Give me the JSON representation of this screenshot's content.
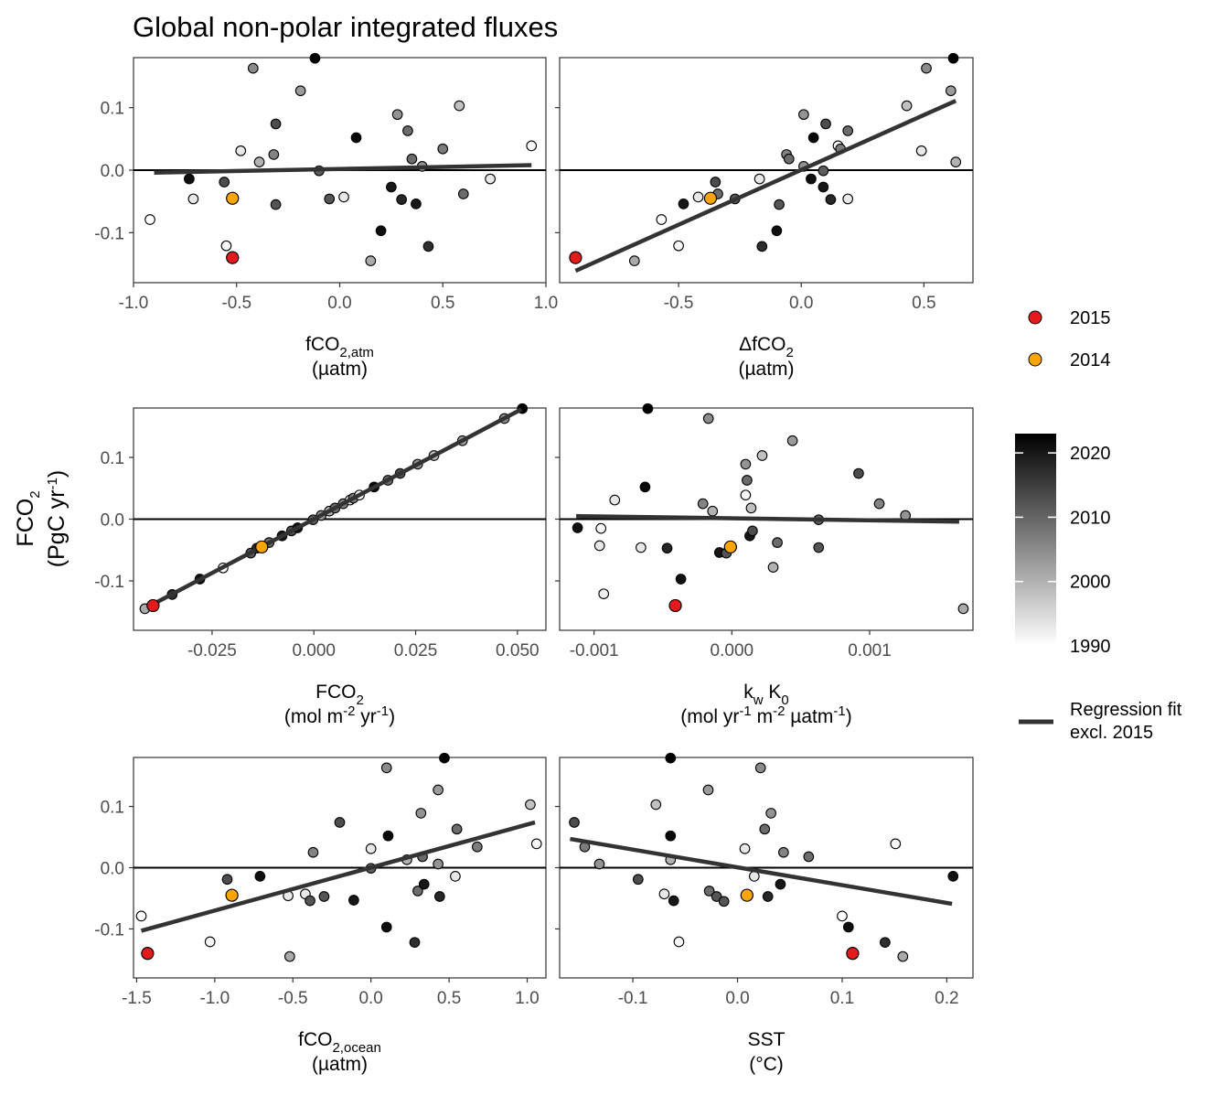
{
  "title": "Global non-polar integrated fluxes",
  "y_axis": {
    "label": "FCO2",
    "unit": "(PgC yr-1)"
  },
  "legend": {
    "highlight": [
      {
        "label": "2015",
        "color": "#e41a1c"
      },
      {
        "label": "2014",
        "color": "#ffa500"
      }
    ],
    "colorbar": {
      "ticks": [
        "2020",
        "2010",
        "2000",
        "1990"
      ],
      "min": 1990,
      "max": 2023
    },
    "regression_label_1": "Regression fit",
    "regression_label_2": "excl. 2015",
    "regression_color": "#333333"
  },
  "chart_data": [
    {
      "type": "scatter",
      "xlabel": "fCO2,atm",
      "xunit": "(µatm)",
      "xlim": [
        -1.0,
        1.0
      ],
      "ylim": [
        -0.18,
        0.18
      ],
      "xticks": [
        "-1.0",
        "-0.5",
        "0.0",
        "0.5",
        "1.0"
      ],
      "yticks": [
        "0.1",
        "0.0",
        "-0.1"
      ],
      "fit": [
        [
          -0.9,
          -0.004
        ],
        [
          0.93,
          0.008
        ]
      ],
      "points": [
        [
          -0.92,
          -0.079,
          1990
        ],
        [
          -0.73,
          -0.014,
          2021
        ],
        [
          -0.71,
          -0.046,
          1993
        ],
        [
          -0.56,
          -0.019,
          2013
        ],
        [
          -0.55,
          -0.121,
          1991
        ],
        [
          -0.52,
          -0.045,
          2014
        ],
        [
          -0.52,
          -0.14,
          2015
        ],
        [
          -0.48,
          0.031,
          1993
        ],
        [
          -0.42,
          0.163,
          2005
        ],
        [
          -0.39,
          0.013,
          2000
        ],
        [
          -0.32,
          0.025,
          2006
        ],
        [
          -0.31,
          -0.055,
          2012
        ],
        [
          -0.31,
          0.074,
          2013
        ],
        [
          -0.19,
          0.127,
          2003
        ],
        [
          -0.12,
          0.179,
          2023
        ],
        [
          -0.1,
          -0.001,
          2011
        ],
        [
          -0.05,
          -0.046,
          2012
        ],
        [
          0.02,
          -0.043,
          1993
        ],
        [
          0.08,
          0.052,
          2022
        ],
        [
          0.15,
          -0.145,
          2001
        ],
        [
          0.2,
          -0.097,
          2021
        ],
        [
          0.25,
          -0.027,
          2020
        ],
        [
          0.28,
          0.089,
          2004
        ],
        [
          0.3,
          -0.047,
          2018
        ],
        [
          0.33,
          0.063,
          2009
        ],
        [
          0.35,
          0.018,
          2009
        ],
        [
          0.37,
          -0.054,
          2020
        ],
        [
          0.4,
          0.006,
          2004
        ],
        [
          0.43,
          -0.122,
          2017
        ],
        [
          0.5,
          0.034,
          2007
        ],
        [
          0.58,
          0.103,
          1998
        ],
        [
          0.6,
          -0.038,
          2009
        ],
        [
          0.73,
          -0.014,
          1993
        ],
        [
          0.93,
          0.039,
          1991
        ]
      ]
    },
    {
      "type": "scatter",
      "xlabel": "ΔfCO2",
      "xunit": "(µatm)",
      "xlim": [
        -0.985,
        0.7
      ],
      "ylim": [
        -0.18,
        0.18
      ],
      "xticks": [
        "-0.5",
        "0.0",
        "0.5"
      ],
      "yticks": [],
      "fit": [
        [
          -0.92,
          -0.161
        ],
        [
          0.63,
          0.111
        ]
      ],
      "points": [
        [
          -0.92,
          -0.14,
          2015
        ],
        [
          -0.68,
          -0.145,
          2001
        ],
        [
          -0.57,
          -0.079,
          1990
        ],
        [
          -0.5,
          -0.121,
          1991
        ],
        [
          -0.48,
          -0.054,
          2020
        ],
        [
          -0.42,
          -0.043,
          1993
        ],
        [
          -0.37,
          -0.045,
          2014
        ],
        [
          -0.35,
          -0.019,
          2013
        ],
        [
          -0.34,
          -0.038,
          2009
        ],
        [
          -0.27,
          -0.046,
          2012
        ],
        [
          -0.17,
          -0.014,
          1993
        ],
        [
          -0.16,
          -0.122,
          2017
        ],
        [
          -0.1,
          -0.097,
          2021
        ],
        [
          -0.09,
          -0.055,
          2012
        ],
        [
          -0.06,
          0.025,
          2006
        ],
        [
          -0.05,
          0.018,
          2009
        ],
        [
          0.01,
          0.006,
          2004
        ],
        [
          0.01,
          0.089,
          2004
        ],
        [
          0.04,
          -0.014,
          2021
        ],
        [
          0.05,
          0.052,
          2022
        ],
        [
          0.09,
          -0.001,
          2011
        ],
        [
          0.09,
          -0.027,
          2020
        ],
        [
          0.1,
          0.074,
          2013
        ],
        [
          0.12,
          -0.047,
          2018
        ],
        [
          0.15,
          0.039,
          1991
        ],
        [
          0.16,
          0.034,
          2007
        ],
        [
          0.19,
          0.063,
          2009
        ],
        [
          0.19,
          -0.046,
          1993
        ],
        [
          0.43,
          0.103,
          1998
        ],
        [
          0.49,
          0.031,
          1993
        ],
        [
          0.51,
          0.163,
          2005
        ],
        [
          0.61,
          0.127,
          2003
        ],
        [
          0.62,
          0.179,
          2023
        ],
        [
          0.63,
          0.013,
          2000
        ]
      ]
    },
    {
      "type": "scatter",
      "xlabel": "FCO2",
      "xunit": "(mol m-2 yr-1)",
      "xlim": [
        -0.0443,
        0.057
      ],
      "ylim": [
        -0.18,
        0.18
      ],
      "xticks": [
        "-0.025",
        "0.000",
        "0.025",
        "0.050"
      ],
      "yticks": [
        "0.1",
        "0.0",
        "-0.1"
      ],
      "fit": [
        [
          -0.041,
          -0.143
        ],
        [
          0.051,
          0.178
        ]
      ],
      "points": [
        [
          -0.0415,
          -0.145,
          2001
        ],
        [
          -0.0395,
          -0.14,
          2015
        ],
        [
          -0.0348,
          -0.122,
          2017
        ],
        [
          -0.028,
          -0.097,
          2021
        ],
        [
          -0.0223,
          -0.079,
          1990
        ],
        [
          -0.0155,
          -0.055,
          2012
        ],
        [
          -0.014,
          -0.047,
          2018
        ],
        [
          -0.0128,
          -0.045,
          2014
        ],
        [
          -0.011,
          -0.038,
          2009
        ],
        [
          -0.0078,
          -0.027,
          2020
        ],
        [
          -0.0055,
          -0.019,
          2013
        ],
        [
          -0.004,
          -0.014,
          2021
        ],
        [
          -0.0002,
          -0.001,
          2011
        ],
        [
          0.0018,
          0.006,
          2004
        ],
        [
          0.0038,
          0.013,
          2000
        ],
        [
          0.0052,
          0.018,
          2009
        ],
        [
          0.0072,
          0.025,
          2006
        ],
        [
          0.0089,
          0.031,
          1993
        ],
        [
          0.0097,
          0.034,
          2007
        ],
        [
          0.0112,
          0.039,
          1991
        ],
        [
          0.0148,
          0.052,
          2022
        ],
        [
          0.0182,
          0.063,
          2009
        ],
        [
          0.0212,
          0.074,
          2013
        ],
        [
          0.0255,
          0.089,
          2004
        ],
        [
          0.0295,
          0.103,
          1998
        ],
        [
          0.0365,
          0.127,
          2003
        ],
        [
          0.0468,
          0.163,
          2005
        ],
        [
          0.0512,
          0.179,
          2023
        ]
      ]
    },
    {
      "type": "scatter",
      "xlabel": "kw K0",
      "xunit": "(mol yr-1 m-2 µatm-1)",
      "xlim": [
        -0.00125,
        0.00175
      ],
      "ylim": [
        -0.18,
        0.18
      ],
      "xticks": [
        "-0.001",
        "0.000",
        "0.001"
      ],
      "yticks": [],
      "fit": [
        [
          -0.00113,
          0.005
        ],
        [
          0.00165,
          -0.004
        ]
      ],
      "points": [
        [
          -0.00112,
          -0.014,
          2021
        ],
        [
          -0.00095,
          -0.015,
          1991
        ],
        [
          -0.00093,
          -0.121,
          1992
        ],
        [
          -0.00096,
          -0.043,
          1993
        ],
        [
          -0.00085,
          0.031,
          1993
        ],
        [
          -0.00066,
          -0.046,
          1993
        ],
        [
          -0.00063,
          0.052,
          2022
        ],
        [
          -0.00061,
          0.179,
          2023
        ],
        [
          -0.00047,
          -0.047,
          2018
        ],
        [
          -0.00041,
          -0.14,
          2015
        ],
        [
          -0.00037,
          -0.097,
          2021
        ],
        [
          -0.00021,
          0.025,
          2006
        ],
        [
          -0.00017,
          0.163,
          2005
        ],
        [
          -0.00014,
          0.013,
          2000
        ],
        [
          -9e-05,
          -0.054,
          2020
        ],
        [
          -4e-05,
          -0.055,
          2012
        ],
        [
          -1e-05,
          -0.045,
          2014
        ],
        [
          0.0001,
          0.089,
          2004
        ],
        [
          0.00011,
          0.063,
          2009
        ],
        [
          0.0001,
          0.039,
          1991
        ],
        [
          0.00014,
          0.018,
          1998
        ],
        [
          0.00013,
          -0.027,
          2020
        ],
        [
          0.00015,
          -0.019,
          2013
        ],
        [
          0.00022,
          0.103,
          1998
        ],
        [
          0.0003,
          -0.078,
          2000
        ],
        [
          0.00033,
          -0.038,
          2009
        ],
        [
          0.00044,
          0.127,
          2003
        ],
        [
          0.00063,
          -0.001,
          2011
        ],
        [
          0.00063,
          -0.046,
          2012
        ],
        [
          0.00092,
          0.074,
          2013
        ],
        [
          0.00107,
          0.025,
          2006
        ],
        [
          0.00126,
          0.006,
          2004
        ],
        [
          0.00168,
          -0.145,
          2001
        ]
      ]
    },
    {
      "type": "scatter",
      "xlabel": "fCO2,ocean",
      "xunit": "(µatm)",
      "xlim": [
        -1.52,
        1.12
      ],
      "ylim": [
        -0.18,
        0.18
      ],
      "xticks": [
        "-1.5",
        "-1.0",
        "-0.5",
        "0.0",
        "0.5",
        "1.0"
      ],
      "yticks": [
        "0.1",
        "0.0",
        "-0.1"
      ],
      "fit": [
        [
          -1.47,
          -0.103
        ],
        [
          1.05,
          0.074
        ]
      ],
      "points": [
        [
          -1.47,
          -0.079,
          1990
        ],
        [
          -1.43,
          -0.14,
          2015
        ],
        [
          -1.03,
          -0.121,
          1991
        ],
        [
          -0.92,
          -0.019,
          2013
        ],
        [
          -0.89,
          -0.045,
          2014
        ],
        [
          -0.71,
          -0.014,
          2021
        ],
        [
          -0.53,
          -0.046,
          1993
        ],
        [
          -0.52,
          -0.145,
          2001
        ],
        [
          -0.42,
          -0.043,
          1993
        ],
        [
          -0.39,
          -0.054,
          2012
        ],
        [
          -0.37,
          0.025,
          2006
        ],
        [
          -0.3,
          -0.047,
          2012
        ],
        [
          -0.2,
          0.074,
          2013
        ],
        [
          -0.11,
          -0.053,
          2020
        ],
        [
          0.0,
          0.031,
          1993
        ],
        [
          0.0,
          -0.001,
          2011
        ],
        [
          0.1,
          -0.097,
          2021
        ],
        [
          0.11,
          0.052,
          2022
        ],
        [
          0.1,
          0.163,
          2005
        ],
        [
          0.23,
          0.013,
          2000
        ],
        [
          0.28,
          -0.122,
          2017
        ],
        [
          0.3,
          -0.038,
          2009
        ],
        [
          0.32,
          0.089,
          2004
        ],
        [
          0.33,
          0.018,
          2009
        ],
        [
          0.34,
          -0.027,
          2020
        ],
        [
          0.43,
          0.127,
          2003
        ],
        [
          0.43,
          0.006,
          2004
        ],
        [
          0.44,
          -0.047,
          2018
        ],
        [
          0.47,
          0.179,
          2023
        ],
        [
          0.54,
          -0.014,
          1993
        ],
        [
          0.55,
          0.063,
          2009
        ],
        [
          0.68,
          0.034,
          2007
        ],
        [
          1.02,
          0.103,
          1998
        ],
        [
          1.06,
          0.039,
          1991
        ]
      ]
    },
    {
      "type": "scatter",
      "xlabel": "SST",
      "xunit": "(°C)",
      "xlim": [
        -0.17,
        0.225
      ],
      "ylim": [
        -0.18,
        0.18
      ],
      "xticks": [
        "-0.1",
        "0.0",
        "0.1",
        "0.2"
      ],
      "yticks": [],
      "fit": [
        [
          -0.16,
          0.047
        ],
        [
          0.205,
          -0.059
        ]
      ],
      "points": [
        [
          -0.156,
          0.074,
          2013
        ],
        [
          -0.146,
          0.034,
          2007
        ],
        [
          -0.132,
          0.006,
          2004
        ],
        [
          -0.095,
          -0.019,
          2013
        ],
        [
          -0.078,
          0.103,
          1998
        ],
        [
          -0.07,
          -0.043,
          1993
        ],
        [
          -0.064,
          0.013,
          2000
        ],
        [
          -0.064,
          0.179,
          2023
        ],
        [
          -0.064,
          0.052,
          2022
        ],
        [
          -0.061,
          -0.054,
          2020
        ],
        [
          -0.056,
          -0.121,
          1991
        ],
        [
          -0.028,
          0.127,
          2003
        ],
        [
          -0.027,
          -0.038,
          2009
        ],
        [
          -0.02,
          -0.047,
          2012
        ],
        [
          -0.013,
          -0.055,
          2012
        ],
        [
          0.007,
          0.031,
          1993
        ],
        [
          0.009,
          -0.045,
          2014
        ],
        [
          0.016,
          -0.014,
          1993
        ],
        [
          0.022,
          0.163,
          2005
        ],
        [
          0.026,
          0.063,
          2009
        ],
        [
          0.029,
          -0.047,
          2018
        ],
        [
          0.032,
          0.089,
          2004
        ],
        [
          0.041,
          -0.027,
          2020
        ],
        [
          0.044,
          0.025,
          2006
        ],
        [
          0.068,
          0.018,
          2009
        ],
        [
          0.1,
          -0.079,
          1990
        ],
        [
          0.106,
          -0.097,
          2021
        ],
        [
          0.11,
          -0.14,
          2015
        ],
        [
          0.141,
          -0.122,
          2017
        ],
        [
          0.151,
          0.039,
          1991
        ],
        [
          0.158,
          -0.145,
          2001
        ],
        [
          0.206,
          -0.014,
          2021
        ]
      ]
    }
  ]
}
